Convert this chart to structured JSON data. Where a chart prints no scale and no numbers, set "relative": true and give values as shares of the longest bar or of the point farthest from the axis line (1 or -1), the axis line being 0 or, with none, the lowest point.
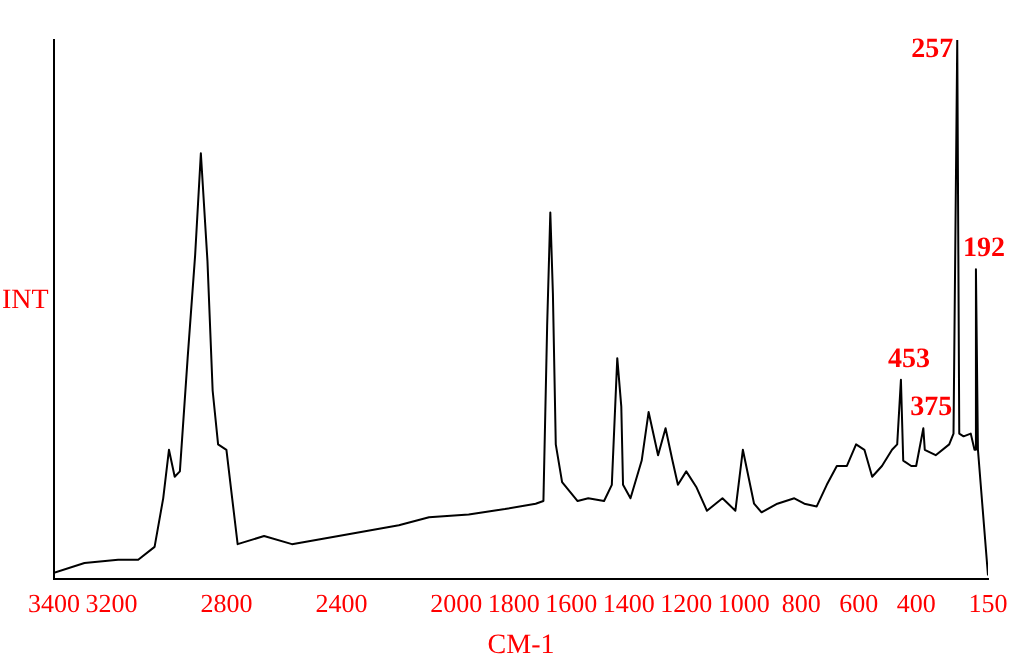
{
  "chart_data": {
    "type": "line",
    "xlabel": "CM-1",
    "ylabel": "INT",
    "relative": true,
    "xlim": [
      3400,
      150
    ],
    "xticks": [
      3400,
      3200,
      2800,
      2400,
      2000,
      1800,
      1600,
      1400,
      1200,
      1000,
      800,
      600,
      400,
      150
    ],
    "grid": false,
    "legend": false,
    "marker": "none",
    "line_style": "solid",
    "series": [
      {
        "color": "#000000",
        "x": [
          3400,
          3294,
          3177,
          3107,
          3050,
          3020,
          3000,
          2980,
          2962,
          2935,
          2909,
          2889,
          2866,
          2848,
          2829,
          2800,
          2780,
          2761,
          2669,
          2572,
          2410,
          2200,
          2095,
          1957,
          1831,
          1724,
          1697,
          1684,
          1673,
          1664,
          1654,
          1632,
          1578,
          1541,
          1486,
          1459,
          1440,
          1426,
          1420,
          1394,
          1355,
          1331,
          1298,
          1272,
          1248,
          1229,
          1200,
          1164,
          1128,
          1074,
          1029,
          1003,
          964,
          938,
          883,
          824,
          789,
          746,
          711,
          676,
          641,
          609,
          580,
          553,
          519,
          484,
          466,
          453,
          445,
          417,
          400,
          375,
          370,
          332,
          285,
          270,
          257,
          250,
          235,
          210,
          197,
          192,
          185,
          170,
          150
        ],
        "values": [
          0.012,
          0.03,
          0.036,
          0.036,
          0.06,
          0.15,
          0.24,
          0.19,
          0.2,
          0.41,
          0.6,
          0.79,
          0.59,
          0.35,
          0.25,
          0.24,
          0.15,
          0.065,
          0.08,
          0.065,
          0.08,
          0.1,
          0.115,
          0.12,
          0.13,
          0.14,
          0.145,
          0.47,
          0.68,
          0.53,
          0.25,
          0.18,
          0.145,
          0.15,
          0.145,
          0.175,
          0.41,
          0.32,
          0.175,
          0.15,
          0.22,
          0.31,
          0.23,
          0.28,
          0.22,
          0.175,
          0.2,
          0.17,
          0.127,
          0.15,
          0.127,
          0.24,
          0.14,
          0.124,
          0.14,
          0.15,
          0.14,
          0.135,
          0.175,
          0.21,
          0.21,
          0.25,
          0.24,
          0.19,
          0.21,
          0.24,
          0.25,
          0.37,
          0.22,
          0.21,
          0.21,
          0.28,
          0.24,
          0.23,
          0.25,
          0.27,
          1,
          0.27,
          0.265,
          0.27,
          0.24,
          0.575,
          0.24,
          0.14,
          0.007
        ]
      }
    ],
    "annotations": [
      {
        "text": "257",
        "x": 257,
        "y": 1
      },
      {
        "text": "453",
        "x": 453,
        "y": 0.37
      },
      {
        "text": "375",
        "x": 375,
        "y": 0.28
      },
      {
        "text": "192",
        "x": 192,
        "y": 0.575
      }
    ]
  }
}
